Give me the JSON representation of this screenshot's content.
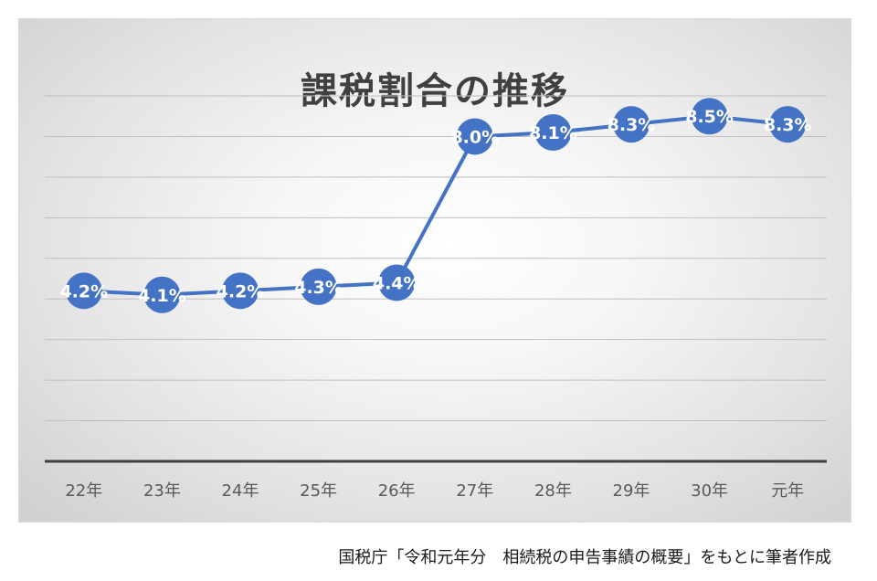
{
  "chart_data": {
    "type": "line",
    "title": "課税割合の推移",
    "categories": [
      "22年",
      "23年",
      "24年",
      "25年",
      "26年",
      "27年",
      "28年",
      "29年",
      "30年",
      "元年"
    ],
    "values": [
      4.2,
      4.1,
      4.2,
      4.3,
      4.4,
      8.0,
      8.1,
      8.3,
      8.5,
      8.3
    ],
    "data_labels": [
      "4.2%",
      "4.1%",
      "4.2%",
      "4.3%",
      "4.4%",
      "8.0%",
      "8.1%",
      "8.3%",
      "8.5%",
      "8.3%"
    ],
    "ylim": [
      0,
      9
    ],
    "grid": true,
    "legend": "none",
    "xlabel": "",
    "ylabel": "",
    "colors": {
      "series": "#4472c4",
      "data_label": "#ffffff",
      "gridline": "#bfbfbf",
      "baseline": "#404040",
      "tick_label": "#595959"
    }
  },
  "source_note": "国税庁「令和元年分　相続税の申告事績の概要」をもとに筆者作成"
}
